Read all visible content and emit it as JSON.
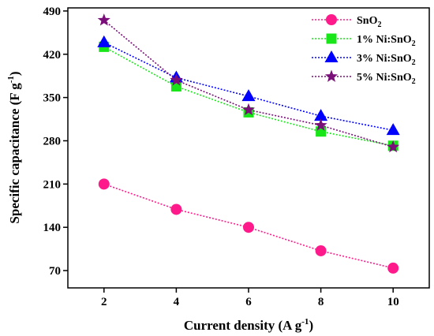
{
  "chart_data": {
    "type": "line",
    "xlabel": "Current density (A g",
    "xlabel_sup": "-1",
    "xlabel_tail": ")",
    "ylabel": "Specific capacitance (F g",
    "ylabel_sup": "-1",
    "ylabel_tail": ")",
    "x": [
      2,
      4,
      6,
      8,
      10
    ],
    "xlim": [
      1,
      11
    ],
    "ylim": [
      42,
      495
    ],
    "xticks": [
      "2",
      "4",
      "6",
      "8",
      "10"
    ],
    "yticks": [
      "70",
      "140",
      "210",
      "280",
      "350",
      "420",
      "490"
    ],
    "legend_position": "top-right",
    "series": [
      {
        "name": "SnO",
        "name_sub": "2",
        "marker": "circle",
        "color": "#ff1a8c",
        "values": [
          210,
          169,
          140,
          102,
          74
        ]
      },
      {
        "name": "1% Ni:SnO",
        "name_sub": "2",
        "marker": "square",
        "color": "#19e619",
        "values": [
          432,
          368,
          326,
          295,
          272
        ]
      },
      {
        "name": "3% Ni:SnO",
        "name_sub": "2",
        "marker": "triangle",
        "color": "#0000ff",
        "values": [
          439,
          382,
          352,
          320,
          297
        ]
      },
      {
        "name": "5% Ni:SnO",
        "name_sub": "2",
        "marker": "star",
        "color": "#7a0f7a",
        "values": [
          475,
          378,
          330,
          305,
          270
        ]
      }
    ]
  }
}
